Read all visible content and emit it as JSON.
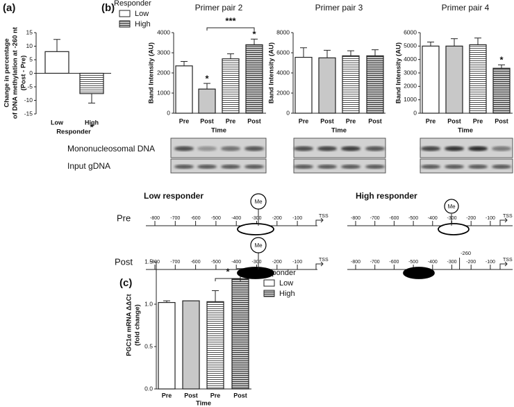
{
  "chart_data": [
    {
      "type": "bar",
      "ylabel": [
        "Change in percentage",
        "of DNA methylation at -260 nt",
        "(Post - Pre)"
      ],
      "xlabel": "Responder",
      "categories": [
        "Low",
        "High"
      ],
      "values": [
        8,
        -7.5
      ],
      "errors": [
        4.5,
        3.5
      ],
      "colors": [
        "#ffffff",
        "#ffffff"
      ],
      "hatch": [
        false,
        true
      ],
      "ylim": [
        -15,
        15
      ],
      "yticks": [
        -15,
        -10,
        -5,
        0,
        5,
        10,
        15
      ],
      "annotations": [
        "*"
      ]
    },
    {
      "type": "bar",
      "title": "Primer pair 2",
      "ylabel": [
        "Band Intensity (AU)"
      ],
      "xlabel": "Time",
      "categories": [
        "Pre",
        "Post",
        "Pre",
        "Post"
      ],
      "values": [
        2350,
        1200,
        2700,
        3400
      ],
      "errors": [
        220,
        280,
        250,
        280
      ],
      "colors": [
        "#ffffff",
        "#c8c8c8",
        "#ffffff",
        "#c8c8c8"
      ],
      "hatch": [
        false,
        false,
        true,
        true
      ],
      "ylim": [
        0,
        4000
      ],
      "yticks": [
        0,
        1000,
        2000,
        3000,
        4000
      ],
      "annotations": [
        "*",
        "***",
        "*"
      ],
      "legend": {
        "title": "Responder",
        "entries": [
          {
            "name": "Low",
            "color": "#ffffff",
            "hatch": false
          },
          {
            "name": "High",
            "color": "#c8c8c8",
            "hatch": true
          }
        ]
      }
    },
    {
      "type": "bar",
      "title": "Primer pair 3",
      "ylabel": [
        "Band Intensity (AU)"
      ],
      "xlabel": "Time",
      "categories": [
        "Pre",
        "Post",
        "Pre",
        "Post"
      ],
      "values": [
        5550,
        5500,
        5700,
        5700
      ],
      "errors": [
        950,
        750,
        500,
        600
      ],
      "colors": [
        "#ffffff",
        "#c8c8c8",
        "#ffffff",
        "#c8c8c8"
      ],
      "hatch": [
        false,
        false,
        true,
        true
      ],
      "ylim": [
        0,
        8000
      ],
      "yticks": [
        0,
        2000,
        4000,
        6000,
        8000
      ],
      "annotations": []
    },
    {
      "type": "bar",
      "title": "Primer pair 4",
      "ylabel": [
        "Band Intensity (AU)"
      ],
      "xlabel": "Time",
      "categories": [
        "Pre",
        "Post",
        "Pre",
        "Post"
      ],
      "values": [
        5000,
        5000,
        5100,
        3350
      ],
      "errors": [
        300,
        550,
        500,
        250
      ],
      "colors": [
        "#ffffff",
        "#c8c8c8",
        "#ffffff",
        "#c8c8c8"
      ],
      "hatch": [
        false,
        false,
        true,
        true
      ],
      "ylim": [
        0,
        6000
      ],
      "yticks": [
        0,
        1000,
        2000,
        3000,
        4000,
        5000,
        6000
      ],
      "annotations": [
        "*"
      ]
    },
    {
      "type": "bar",
      "ylabel": [
        "PGC1α mRNA ΔΔCt",
        "(fold  change)"
      ],
      "xlabel": "Time",
      "categories": [
        "Pre",
        "Post",
        "Pre",
        "Post"
      ],
      "values": [
        1.02,
        1.04,
        1.03,
        1.3
      ],
      "errors": [
        0.02,
        0,
        0.13,
        0.12
      ],
      "colors": [
        "#ffffff",
        "#c8c8c8",
        "#ffffff",
        "#c8c8c8"
      ],
      "hatch": [
        false,
        false,
        true,
        true
      ],
      "ylim": [
        0,
        1.5
      ],
      "yticks": [
        {
          "value": 0,
          "label": "0.0"
        },
        {
          "value": 0.5,
          "label": "0.5"
        },
        {
          "value": 1,
          "label": "1.0"
        },
        {
          "value": 1.5,
          "label": "1.5"
        }
      ],
      "annotations": [
        "*"
      ],
      "legend": {
        "title": "Responder",
        "entries": [
          {
            "name": "Low",
            "color": "#ffffff",
            "hatch": false
          },
          {
            "name": "High",
            "color": "#c8c8c8",
            "hatch": true
          }
        ]
      }
    }
  ],
  "panel_labels": [
    "(a)",
    "(b)",
    "(c)"
  ],
  "gel": {
    "rows": [
      "Mononucleosomal DNA",
      "Input gDNA"
    ]
  },
  "diagram": {
    "groups": [
      "Low responder",
      "High responder"
    ],
    "timepoints": [
      "Pre",
      "Post"
    ],
    "positions": [
      -800,
      -700,
      -600,
      -500,
      -400,
      -300,
      -200,
      -100
    ],
    "tss": "TSS",
    "methyl": "Me",
    "site": -260
  }
}
